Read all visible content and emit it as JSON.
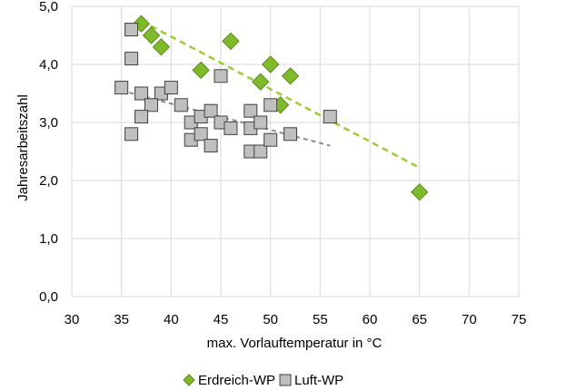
{
  "chart_data": {
    "type": "scatter",
    "xlabel": "max. Vorlauftemperatur in °C",
    "ylabel": "Jahresarbeitszahl",
    "xlim": [
      30,
      75
    ],
    "ylim": [
      0,
      5
    ],
    "x_ticks": [
      30,
      35,
      40,
      45,
      50,
      55,
      60,
      65,
      70,
      75
    ],
    "y_ticks": [
      0,
      1,
      2,
      3,
      4,
      5
    ],
    "x_tick_labels": [
      "30",
      "35",
      "40",
      "45",
      "50",
      "55",
      "60",
      "65",
      "70",
      "75"
    ],
    "y_tick_labels": [
      "0,0",
      "1,0",
      "2,0",
      "3,0",
      "4,0",
      "5,0"
    ],
    "grid": true,
    "legend_position": "bottom",
    "series": [
      {
        "name": "Erdreich-WP",
        "marker": "diamond",
        "color": "#7fba2a",
        "points": [
          [
            37,
            4.7
          ],
          [
            38,
            4.5
          ],
          [
            39,
            4.3
          ],
          [
            43,
            3.9
          ],
          [
            46,
            4.4
          ],
          [
            49,
            3.7
          ],
          [
            50,
            4.0
          ],
          [
            51,
            3.3
          ],
          [
            52,
            3.8
          ],
          [
            65,
            1.8
          ]
        ],
        "trendline": {
          "color": "#9acd32",
          "from": [
            37,
            4.75
          ],
          "to": [
            65,
            2.22
          ]
        }
      },
      {
        "name": "Luft-WP",
        "marker": "square",
        "color": "#bfbfbf",
        "points": [
          [
            36,
            4.6
          ],
          [
            36,
            4.1
          ],
          [
            35,
            3.6
          ],
          [
            37,
            3.5
          ],
          [
            39,
            3.5
          ],
          [
            40,
            3.6
          ],
          [
            38,
            3.3
          ],
          [
            37,
            3.1
          ],
          [
            36,
            2.8
          ],
          [
            41,
            3.3
          ],
          [
            42,
            3.0
          ],
          [
            43,
            3.1
          ],
          [
            44,
            3.2
          ],
          [
            42,
            2.7
          ],
          [
            43,
            2.8
          ],
          [
            44,
            2.6
          ],
          [
            45,
            3.8
          ],
          [
            45,
            3.0
          ],
          [
            46,
            2.9
          ],
          [
            48,
            3.2
          ],
          [
            48,
            2.9
          ],
          [
            49,
            3.0
          ],
          [
            48,
            2.5
          ],
          [
            49,
            2.5
          ],
          [
            50,
            3.3
          ],
          [
            50,
            2.7
          ],
          [
            52,
            2.8
          ],
          [
            56,
            3.1
          ]
        ],
        "trendline": {
          "color": "#8c8c8c",
          "from": [
            35,
            3.55
          ],
          "to": [
            56,
            2.6
          ]
        }
      }
    ]
  }
}
